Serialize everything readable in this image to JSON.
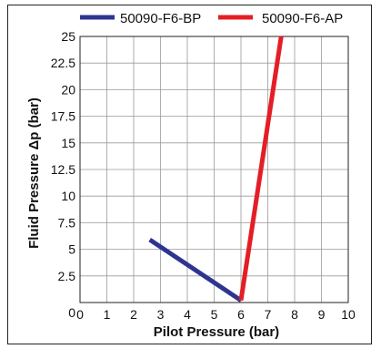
{
  "chart_data": {
    "type": "line",
    "xlabel": "Pilot Pressure (bar)",
    "ylabel": "Fluid Pressure Δp (bar)",
    "xlim": [
      0,
      10
    ],
    "ylim": [
      0,
      25
    ],
    "x_ticks": [
      "0",
      "1",
      "2",
      "3",
      "4",
      "5",
      "6",
      "7",
      "8",
      "9",
      "10"
    ],
    "y_ticks": [
      "0",
      "2.5",
      "5",
      "7.5",
      "10",
      "12.5",
      "15",
      "17.5",
      "20",
      "22.5",
      "25"
    ],
    "grid": true,
    "legend_position": "top",
    "series": [
      {
        "name": "50090-F6-BP",
        "color": "#2e3590",
        "x": [
          2.6,
          6.0
        ],
        "y": [
          5.9,
          0.2
        ]
      },
      {
        "name": "50090-F6-AP",
        "color": "#e41e26",
        "x": [
          6.0,
          7.5
        ],
        "y": [
          0.2,
          25.0
        ]
      }
    ]
  }
}
